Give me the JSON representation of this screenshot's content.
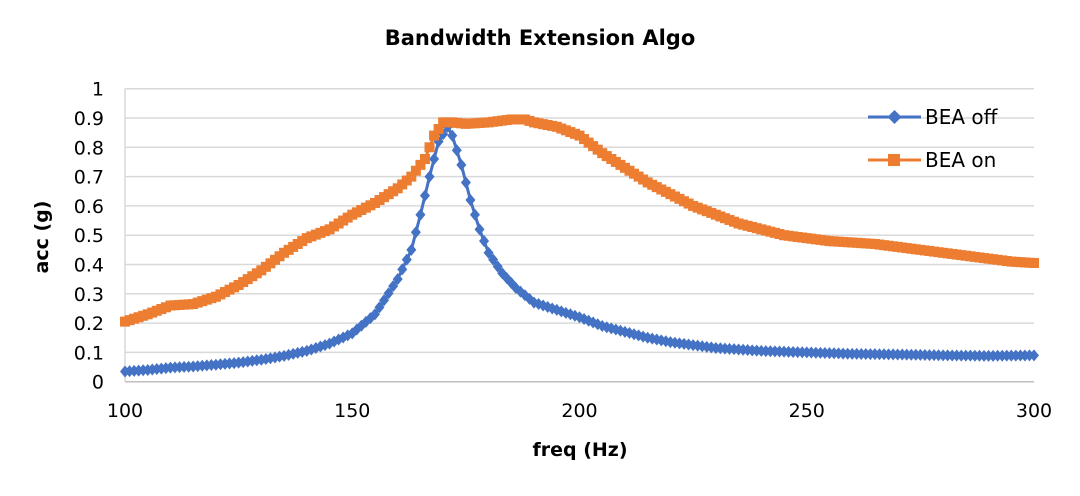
{
  "chart_data": {
    "type": "line",
    "title": "Bandwidth Extension Algo",
    "xlabel": "freq (Hz)",
    "ylabel": "acc (g)",
    "xlim": [
      100,
      300
    ],
    "ylim": [
      0,
      1
    ],
    "xticks": [
      "100",
      "150",
      "200",
      "250",
      "300"
    ],
    "yticks": [
      "0",
      "0.1",
      "0.2",
      "0.3",
      "0.4",
      "0.5",
      "0.6",
      "0.7",
      "0.8",
      "0.9",
      "1"
    ],
    "grid": true,
    "legend_position": "top-right",
    "series": [
      {
        "name": "BEA off",
        "color": "#4472C4",
        "marker": "diamond",
        "x": [
          100,
          105,
          110,
          115,
          120,
          125,
          130,
          135,
          140,
          145,
          150,
          155,
          160,
          163,
          165,
          167,
          169,
          171,
          172,
          174,
          176,
          178,
          180,
          183,
          186,
          190,
          195,
          200,
          205,
          210,
          215,
          220,
          225,
          230,
          235,
          240,
          250,
          260,
          270,
          280,
          290,
          300
        ],
        "y": [
          0.035,
          0.04,
          0.048,
          0.052,
          0.058,
          0.065,
          0.075,
          0.088,
          0.105,
          0.13,
          0.165,
          0.23,
          0.35,
          0.45,
          0.57,
          0.7,
          0.82,
          0.87,
          0.84,
          0.74,
          0.62,
          0.52,
          0.44,
          0.37,
          0.32,
          0.27,
          0.245,
          0.22,
          0.19,
          0.17,
          0.15,
          0.135,
          0.125,
          0.115,
          0.11,
          0.105,
          0.1,
          0.095,
          0.093,
          0.09,
          0.088,
          0.09
        ]
      },
      {
        "name": "BEA on",
        "color": "#ED7D31",
        "marker": "square",
        "x": [
          100,
          105,
          110,
          115,
          120,
          125,
          130,
          135,
          140,
          145,
          150,
          155,
          160,
          163,
          166,
          168,
          170,
          172,
          175,
          180,
          185,
          188,
          190,
          195,
          200,
          205,
          210,
          215,
          220,
          225,
          230,
          235,
          240,
          245,
          250,
          255,
          260,
          265,
          270,
          275,
          280,
          285,
          290,
          295,
          300
        ],
        "y": [
          0.205,
          0.23,
          0.26,
          0.265,
          0.29,
          0.33,
          0.38,
          0.44,
          0.49,
          0.52,
          0.57,
          0.61,
          0.66,
          0.7,
          0.76,
          0.84,
          0.885,
          0.885,
          0.88,
          0.885,
          0.895,
          0.895,
          0.885,
          0.87,
          0.84,
          0.78,
          0.73,
          0.68,
          0.64,
          0.6,
          0.57,
          0.54,
          0.52,
          0.5,
          0.49,
          0.48,
          0.475,
          0.47,
          0.46,
          0.45,
          0.44,
          0.43,
          0.42,
          0.41,
          0.405
        ]
      }
    ]
  }
}
